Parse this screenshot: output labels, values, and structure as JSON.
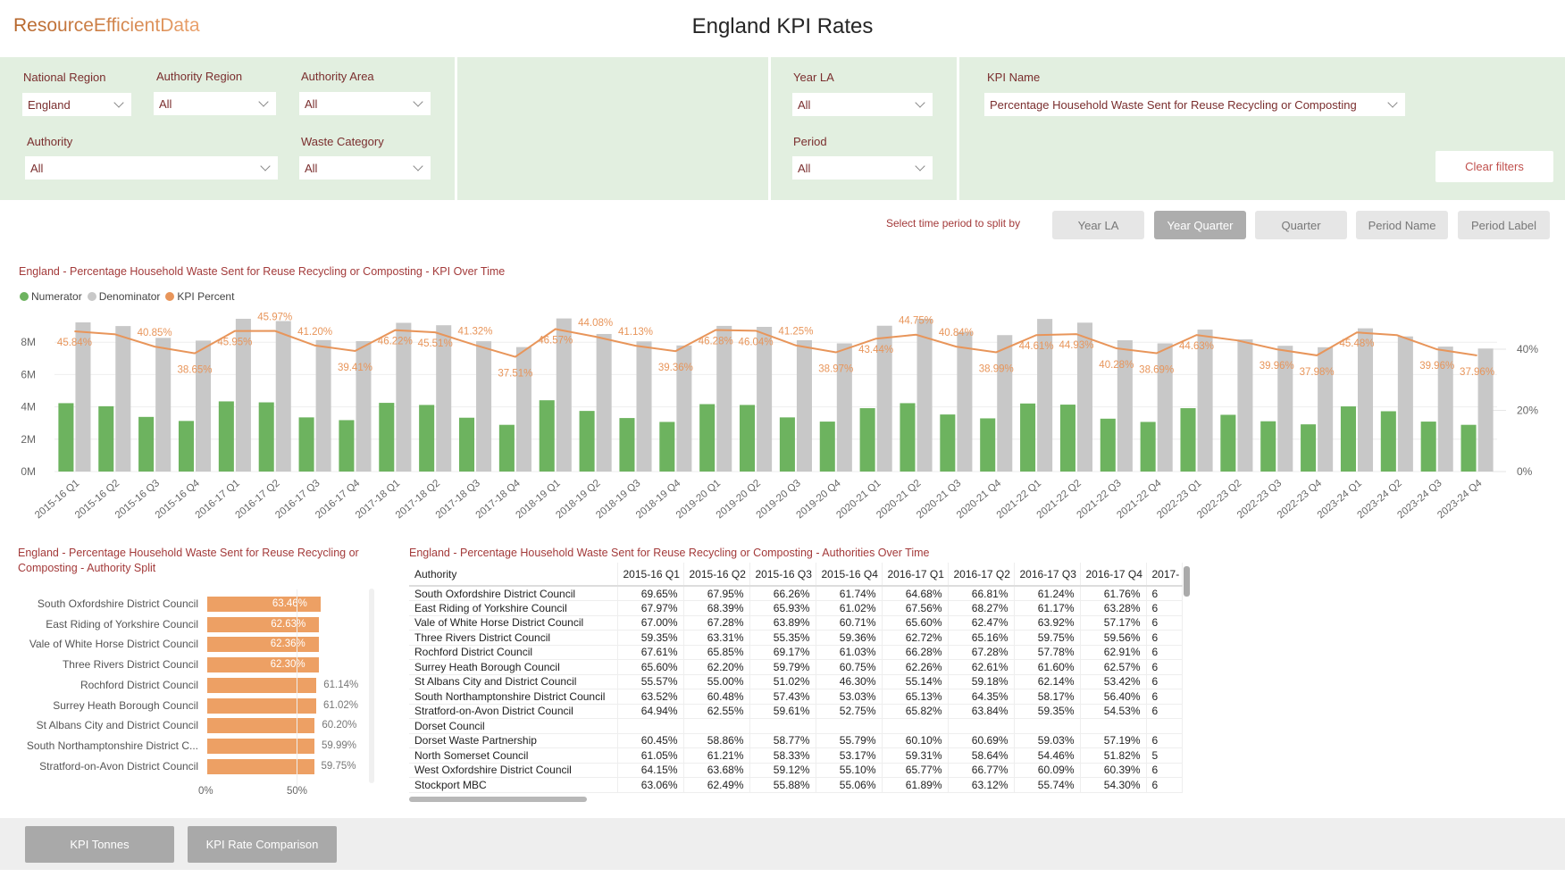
{
  "header": {
    "logo": "ResourceEfficientData",
    "title": "England KPI Rates"
  },
  "filters": {
    "national_region": {
      "label": "National Region",
      "value": "England"
    },
    "authority_region": {
      "label": "Authority Region",
      "value": "All"
    },
    "authority_area": {
      "label": "Authority Area",
      "value": "All"
    },
    "authority": {
      "label": "Authority",
      "value": "All"
    },
    "waste_category": {
      "label": "Waste Category",
      "value": "All"
    },
    "year_la": {
      "label": "Year LA",
      "value": "All"
    },
    "period": {
      "label": "Period",
      "value": "All"
    },
    "kpi_name": {
      "label": "KPI Name",
      "value": "Percentage Household Waste Sent for Reuse Recycling or Composting"
    },
    "clear_label": "Clear filters"
  },
  "split": {
    "label": "Select time period to split by",
    "options": [
      "Year LA",
      "Year Quarter",
      "Quarter",
      "Period Name",
      "Period Label"
    ],
    "selected": "Year Quarter"
  },
  "colors": {
    "numerator": "#6db35f",
    "denominator": "#c8c8c8",
    "kpi": "#e8955a",
    "accent_text": "#a33a3a"
  },
  "chart_data": [
    {
      "type": "bar+line",
      "title": "England - Percentage Household Waste Sent for Reuse Recycling or Composting - KPI Over Time",
      "legend": [
        "Numerator",
        "Denominator",
        "KPI Percent"
      ],
      "legend_position": "top-left",
      "y_left": {
        "ticks": [
          "0M",
          "2M",
          "4M",
          "6M",
          "8M"
        ],
        "range": [
          0,
          10
        ],
        "unit": "M"
      },
      "y_right": {
        "ticks": [
          "0%",
          "20%",
          "40%"
        ],
        "range": [
          0,
          52.9
        ]
      },
      "grid": true,
      "categories": [
        "2015-16 Q1",
        "2015-16 Q2",
        "2015-16 Q3",
        "2015-16 Q4",
        "2016-17 Q1",
        "2016-17 Q2",
        "2016-17 Q3",
        "2016-17 Q4",
        "2017-18 Q1",
        "2017-18 Q2",
        "2017-18 Q3",
        "2017-18 Q4",
        "2018-19 Q1",
        "2018-19 Q2",
        "2018-19 Q3",
        "2018-19 Q4",
        "2019-20 Q1",
        "2019-20 Q2",
        "2019-20 Q3",
        "2019-20 Q4",
        "2020-21 Q1",
        "2020-21 Q2",
        "2020-21 Q3",
        "2020-21 Q4",
        "2021-22 Q1",
        "2021-22 Q2",
        "2021-22 Q3",
        "2021-22 Q4",
        "2022-23 Q1",
        "2022-23 Q2",
        "2022-23 Q3",
        "2022-23 Q4",
        "2023-24 Q1",
        "2023-24 Q2",
        "2023-24 Q3",
        "2023-24 Q4"
      ],
      "series": [
        {
          "name": "Numerator",
          "values": [
            4.23,
            4.04,
            3.38,
            3.13,
            4.34,
            4.28,
            3.35,
            3.18,
            4.25,
            4.12,
            3.33,
            2.89,
            4.41,
            3.75,
            3.31,
            3.07,
            4.17,
            4.12,
            3.35,
            3.09,
            3.92,
            4.23,
            3.53,
            3.29,
            4.21,
            4.14,
            3.27,
            3.07,
            3.92,
            3.51,
            3.11,
            2.92,
            4.03,
            3.73,
            3.09,
            2.89
          ]
        },
        {
          "name": "Denominator",
          "values": [
            9.23,
            9.0,
            8.27,
            8.1,
            9.45,
            9.31,
            8.13,
            8.07,
            9.2,
            9.05,
            8.06,
            7.7,
            9.47,
            8.51,
            8.05,
            7.8,
            9.01,
            8.95,
            8.12,
            7.93,
            9.02,
            9.45,
            8.64,
            8.44,
            9.44,
            9.21,
            8.12,
            7.93,
            8.78,
            8.18,
            7.78,
            7.69,
            8.86,
            8.36,
            7.73,
            7.61
          ]
        },
        {
          "name": "KPI Percent",
          "values": [
            45.84,
            44.9,
            40.85,
            38.65,
            45.95,
            45.97,
            41.2,
            39.41,
            46.22,
            45.51,
            41.32,
            37.51,
            46.57,
            44.08,
            41.13,
            39.36,
            46.28,
            46.04,
            41.25,
            38.97,
            43.44,
            44.75,
            40.84,
            38.99,
            44.61,
            44.93,
            40.28,
            38.69,
            44.63,
            42.9,
            39.96,
            37.98,
            45.48,
            44.6,
            39.96,
            37.96
          ],
          "labels": [
            "45.84%",
            "",
            "40.85%",
            "38.65%",
            "45.95%",
            "45.97%",
            "41.20%",
            "39.41%",
            "46.22%",
            "45.51%",
            "41.32%",
            "37.51%",
            "46.57%",
            "44.08%",
            "41.13%",
            "39.36%",
            "46.28%",
            "46.04%",
            "41.25%",
            "38.97%",
            "43.44%",
            "44.75%",
            "40.84%",
            "38.99%",
            "44.61%",
            "44.93%",
            "40.28%",
            "38.69%",
            "44.63%",
            "",
            "39.96%",
            "37.98%",
            "45.48%",
            "",
            "39.96%",
            "37.96%"
          ]
        }
      ]
    },
    {
      "type": "bar",
      "orientation": "horizontal",
      "title": "England - Percentage Household Waste Sent for Reuse Recycling or Composting - Authority Split",
      "categories": [
        "South Oxfordshire District Council",
        "East Riding of Yorkshire Council",
        "Vale of White Horse District Council",
        "Three Rivers District Council",
        "Rochford District Council",
        "Surrey Heath Borough Council",
        "St Albans City and District Council",
        "South Northamptonshire District C...",
        "Stratford-on-Avon District Council"
      ],
      "values": [
        63.46,
        62.63,
        62.36,
        62.3,
        61.14,
        61.02,
        60.2,
        59.99,
        59.75
      ],
      "labels": [
        "63.46%",
        "62.63%",
        "62.36%",
        "62.30%",
        "61.14%",
        "61.02%",
        "60.20%",
        "59.99%",
        "59.75%"
      ],
      "x_ticks": [
        "0%",
        "50%"
      ],
      "xlim": [
        0,
        100
      ]
    }
  ],
  "table": {
    "title": "England - Percentage Household Waste Sent for Reuse Recycling or Composting - Authorities Over Time",
    "columns": [
      "Authority",
      "2015-16 Q1",
      "2015-16 Q2",
      "2015-16 Q3",
      "2015-16 Q4",
      "2016-17 Q1",
      "2016-17 Q2",
      "2016-17 Q3",
      "2016-17 Q4",
      "2017-"
    ],
    "rows": [
      [
        "South Oxfordshire District Council",
        "69.65%",
        "67.95%",
        "66.26%",
        "61.74%",
        "64.68%",
        "66.81%",
        "61.24%",
        "61.76%",
        "6"
      ],
      [
        "East Riding of Yorkshire Council",
        "67.97%",
        "68.39%",
        "65.93%",
        "61.02%",
        "67.56%",
        "68.27%",
        "61.17%",
        "63.28%",
        "6"
      ],
      [
        "Vale of White Horse District Council",
        "67.00%",
        "67.28%",
        "63.89%",
        "60.71%",
        "65.60%",
        "62.47%",
        "63.92%",
        "57.17%",
        "6"
      ],
      [
        "Three Rivers District Council",
        "59.35%",
        "63.31%",
        "55.35%",
        "59.36%",
        "62.72%",
        "65.16%",
        "59.75%",
        "59.56%",
        "6"
      ],
      [
        "Rochford District Council",
        "67.61%",
        "65.85%",
        "69.17%",
        "61.03%",
        "66.28%",
        "67.28%",
        "57.78%",
        "62.91%",
        "6"
      ],
      [
        "Surrey Heath Borough Council",
        "65.60%",
        "62.20%",
        "59.79%",
        "60.75%",
        "62.26%",
        "62.61%",
        "61.60%",
        "62.57%",
        "6"
      ],
      [
        "St Albans City and District Council",
        "55.57%",
        "55.00%",
        "51.02%",
        "46.30%",
        "55.14%",
        "59.18%",
        "62.14%",
        "53.42%",
        "6"
      ],
      [
        "South Northamptonshire District Council",
        "63.52%",
        "60.48%",
        "57.43%",
        "53.03%",
        "65.13%",
        "64.35%",
        "58.17%",
        "56.40%",
        "6"
      ],
      [
        "Stratford-on-Avon District Council",
        "64.94%",
        "62.55%",
        "59.61%",
        "52.75%",
        "65.82%",
        "63.84%",
        "59.35%",
        "54.53%",
        "6"
      ],
      [
        "Dorset Council",
        "",
        "",
        "",
        "",
        "",
        "",
        "",
        "",
        ""
      ],
      [
        "Dorset Waste Partnership",
        "60.45%",
        "58.86%",
        "58.77%",
        "55.79%",
        "60.10%",
        "60.69%",
        "59.03%",
        "57.19%",
        "6"
      ],
      [
        "North Somerset Council",
        "61.05%",
        "61.21%",
        "58.33%",
        "53.17%",
        "59.31%",
        "58.64%",
        "54.46%",
        "51.82%",
        "5"
      ],
      [
        "West Oxfordshire District Council",
        "64.15%",
        "63.68%",
        "59.12%",
        "55.10%",
        "65.77%",
        "66.77%",
        "60.09%",
        "60.39%",
        "6"
      ],
      [
        "Stockport MBC",
        "63.06%",
        "62.49%",
        "55.88%",
        "55.06%",
        "61.89%",
        "63.12%",
        "55.74%",
        "54.30%",
        "6"
      ]
    ]
  },
  "nav": {
    "kpi_tonnes": "KPI Tonnes",
    "kpi_rate_comparison": "KPI Rate Comparison"
  }
}
